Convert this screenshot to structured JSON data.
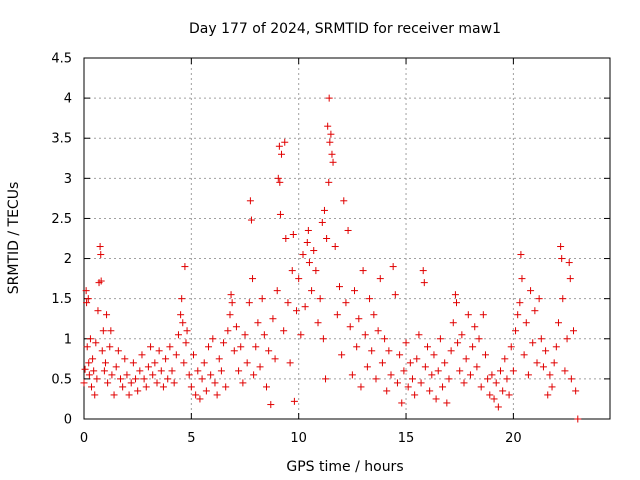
{
  "chart_data": {
    "type": "scatter",
    "title": "Day 177 of 2024, SRMTID for receiver maw1",
    "xlabel": "GPS time / hours",
    "ylabel": "SRMTID / TECUs",
    "xlim": [
      0,
      24.5
    ],
    "ylim": [
      0,
      4.5
    ],
    "xticks": [
      0,
      5,
      10,
      15,
      20
    ],
    "xtick_labels": [
      "0",
      "5",
      "10",
      "15",
      "20"
    ],
    "yticks": [
      0,
      0.5,
      1,
      1.5,
      2,
      2.5,
      3,
      3.5,
      4,
      4.5
    ],
    "ytick_labels": [
      "0",
      "0.5",
      "1",
      "1.5",
      "2",
      "2.5",
      "3",
      "3.5",
      "4",
      "4.5"
    ],
    "grid": true,
    "marker": "+",
    "color": "#e00000",
    "series": [
      {
        "name": "SRMTID",
        "points": [
          [
            0.0,
            0.45
          ],
          [
            0.05,
            0.62
          ],
          [
            0.1,
            1.6
          ],
          [
            0.12,
            1.45
          ],
          [
            0.15,
            0.9
          ],
          [
            0.2,
            1.5
          ],
          [
            0.22,
            0.7
          ],
          [
            0.25,
            0.55
          ],
          [
            0.3,
            1.0
          ],
          [
            0.35,
            0.4
          ],
          [
            0.4,
            0.75
          ],
          [
            0.45,
            0.6
          ],
          [
            0.5,
            0.3
          ],
          [
            0.55,
            0.95
          ],
          [
            0.6,
            0.5
          ],
          [
            0.65,
            1.35
          ],
          [
            0.7,
            1.7
          ],
          [
            0.75,
            2.15
          ],
          [
            0.78,
            2.05
          ],
          [
            0.8,
            1.72
          ],
          [
            0.85,
            0.85
          ],
          [
            0.9,
            1.1
          ],
          [
            0.95,
            0.6
          ],
          [
            1.0,
            0.7
          ],
          [
            1.05,
            1.3
          ],
          [
            1.1,
            0.45
          ],
          [
            1.2,
            0.9
          ],
          [
            1.25,
            1.1
          ],
          [
            1.3,
            0.55
          ],
          [
            1.4,
            0.3
          ],
          [
            1.5,
            0.65
          ],
          [
            1.6,
            0.85
          ],
          [
            1.7,
            0.5
          ],
          [
            1.8,
            0.4
          ],
          [
            1.9,
            0.75
          ],
          [
            2.0,
            0.55
          ],
          [
            2.1,
            0.3
          ],
          [
            2.2,
            0.45
          ],
          [
            2.3,
            0.7
          ],
          [
            2.4,
            0.5
          ],
          [
            2.5,
            0.35
          ],
          [
            2.6,
            0.6
          ],
          [
            2.7,
            0.8
          ],
          [
            2.8,
            0.5
          ],
          [
            2.9,
            0.4
          ],
          [
            3.0,
            0.65
          ],
          [
            3.1,
            0.9
          ],
          [
            3.2,
            0.55
          ],
          [
            3.3,
            0.7
          ],
          [
            3.4,
            0.45
          ],
          [
            3.5,
            0.85
          ],
          [
            3.6,
            0.6
          ],
          [
            3.7,
            0.4
          ],
          [
            3.8,
            0.75
          ],
          [
            3.9,
            0.5
          ],
          [
            4.0,
            0.9
          ],
          [
            4.1,
            0.6
          ],
          [
            4.2,
            0.45
          ],
          [
            4.3,
            0.8
          ],
          [
            4.4,
            1.05
          ],
          [
            4.5,
            1.3
          ],
          [
            4.55,
            1.5
          ],
          [
            4.6,
            1.2
          ],
          [
            4.65,
            0.7
          ],
          [
            4.7,
            1.9
          ],
          [
            4.75,
            0.95
          ],
          [
            4.8,
            1.1
          ],
          [
            4.9,
            0.55
          ],
          [
            5.0,
            0.4
          ],
          [
            5.1,
            0.8
          ],
          [
            5.2,
            0.3
          ],
          [
            5.3,
            0.6
          ],
          [
            5.4,
            0.25
          ],
          [
            5.5,
            0.5
          ],
          [
            5.6,
            0.7
          ],
          [
            5.7,
            0.35
          ],
          [
            5.8,
            0.9
          ],
          [
            5.9,
            0.55
          ],
          [
            6.0,
            1.0
          ],
          [
            6.1,
            0.45
          ],
          [
            6.2,
            0.3
          ],
          [
            6.3,
            0.75
          ],
          [
            6.4,
            0.6
          ],
          [
            6.5,
            0.95
          ],
          [
            6.6,
            0.4
          ],
          [
            6.7,
            1.1
          ],
          [
            6.8,
            1.3
          ],
          [
            6.85,
            1.55
          ],
          [
            6.9,
            1.45
          ],
          [
            7.0,
            0.85
          ],
          [
            7.1,
            1.15
          ],
          [
            7.2,
            0.6
          ],
          [
            7.3,
            0.9
          ],
          [
            7.4,
            0.45
          ],
          [
            7.5,
            1.05
          ],
          [
            7.6,
            0.7
          ],
          [
            7.7,
            1.45
          ],
          [
            7.75,
            2.72
          ],
          [
            7.8,
            2.48
          ],
          [
            7.85,
            1.75
          ],
          [
            7.9,
            0.55
          ],
          [
            8.0,
            0.9
          ],
          [
            8.1,
            1.2
          ],
          [
            8.2,
            0.65
          ],
          [
            8.3,
            1.5
          ],
          [
            8.4,
            1.05
          ],
          [
            8.5,
            0.4
          ],
          [
            8.6,
            0.85
          ],
          [
            8.7,
            0.18
          ],
          [
            8.8,
            1.25
          ],
          [
            8.9,
            0.75
          ],
          [
            9.0,
            1.6
          ],
          [
            9.05,
            3.0
          ],
          [
            9.1,
            3.4
          ],
          [
            9.12,
            2.95
          ],
          [
            9.15,
            2.55
          ],
          [
            9.2,
            3.3
          ],
          [
            9.3,
            1.1
          ],
          [
            9.35,
            3.45
          ],
          [
            9.4,
            2.25
          ],
          [
            9.5,
            1.45
          ],
          [
            9.6,
            0.7
          ],
          [
            9.7,
            1.85
          ],
          [
            9.75,
            2.3
          ],
          [
            9.8,
            0.22
          ],
          [
            9.9,
            1.35
          ],
          [
            10.0,
            1.75
          ],
          [
            10.1,
            1.05
          ],
          [
            10.2,
            2.05
          ],
          [
            10.3,
            1.4
          ],
          [
            10.4,
            2.2
          ],
          [
            10.45,
            2.35
          ],
          [
            10.5,
            1.95
          ],
          [
            10.6,
            1.6
          ],
          [
            10.7,
            2.1
          ],
          [
            10.8,
            1.85
          ],
          [
            10.9,
            1.2
          ],
          [
            11.0,
            1.5
          ],
          [
            11.1,
            2.45
          ],
          [
            11.15,
            1.0
          ],
          [
            11.2,
            2.6
          ],
          [
            11.25,
            0.5
          ],
          [
            11.3,
            2.25
          ],
          [
            11.35,
            3.65
          ],
          [
            11.4,
            2.95
          ],
          [
            11.42,
            4.0
          ],
          [
            11.45,
            3.45
          ],
          [
            11.5,
            3.55
          ],
          [
            11.55,
            3.3
          ],
          [
            11.6,
            3.2
          ],
          [
            11.7,
            2.15
          ],
          [
            11.8,
            1.3
          ],
          [
            11.9,
            1.65
          ],
          [
            12.0,
            0.8
          ],
          [
            12.1,
            2.72
          ],
          [
            12.2,
            1.45
          ],
          [
            12.3,
            2.35
          ],
          [
            12.4,
            1.15
          ],
          [
            12.5,
            0.55
          ],
          [
            12.6,
            1.6
          ],
          [
            12.7,
            0.9
          ],
          [
            12.8,
            1.25
          ],
          [
            12.9,
            0.4
          ],
          [
            13.0,
            1.85
          ],
          [
            13.1,
            1.05
          ],
          [
            13.2,
            0.65
          ],
          [
            13.3,
            1.5
          ],
          [
            13.4,
            0.85
          ],
          [
            13.5,
            1.3
          ],
          [
            13.6,
            0.5
          ],
          [
            13.7,
            1.1
          ],
          [
            13.8,
            1.75
          ],
          [
            13.9,
            0.7
          ],
          [
            14.0,
            1.0
          ],
          [
            14.1,
            0.35
          ],
          [
            14.2,
            0.85
          ],
          [
            14.3,
            0.55
          ],
          [
            14.4,
            1.9
          ],
          [
            14.5,
            1.55
          ],
          [
            14.6,
            0.45
          ],
          [
            14.7,
            0.8
          ],
          [
            14.8,
            0.2
          ],
          [
            14.9,
            0.6
          ],
          [
            15.0,
            0.95
          ],
          [
            15.1,
            0.4
          ],
          [
            15.2,
            0.7
          ],
          [
            15.3,
            0.5
          ],
          [
            15.4,
            0.3
          ],
          [
            15.5,
            0.75
          ],
          [
            15.6,
            1.05
          ],
          [
            15.7,
            0.45
          ],
          [
            15.8,
            1.85
          ],
          [
            15.85,
            1.7
          ],
          [
            15.9,
            0.65
          ],
          [
            16.0,
            0.9
          ],
          [
            16.1,
            0.35
          ],
          [
            16.2,
            0.55
          ],
          [
            16.3,
            0.8
          ],
          [
            16.4,
            0.25
          ],
          [
            16.5,
            0.6
          ],
          [
            16.6,
            1.0
          ],
          [
            16.7,
            0.4
          ],
          [
            16.8,
            0.7
          ],
          [
            16.9,
            0.2
          ],
          [
            17.0,
            0.5
          ],
          [
            17.1,
            0.85
          ],
          [
            17.2,
            1.2
          ],
          [
            17.3,
            1.55
          ],
          [
            17.35,
            1.45
          ],
          [
            17.4,
            0.95
          ],
          [
            17.5,
            0.6
          ],
          [
            17.6,
            1.05
          ],
          [
            17.7,
            0.45
          ],
          [
            17.8,
            0.75
          ],
          [
            17.9,
            1.3
          ],
          [
            18.0,
            0.55
          ],
          [
            18.1,
            0.9
          ],
          [
            18.2,
            1.15
          ],
          [
            18.3,
            0.65
          ],
          [
            18.4,
            1.0
          ],
          [
            18.5,
            0.4
          ],
          [
            18.6,
            1.3
          ],
          [
            18.7,
            0.8
          ],
          [
            18.8,
            0.5
          ],
          [
            18.9,
            0.3
          ],
          [
            19.0,
            0.55
          ],
          [
            19.1,
            0.25
          ],
          [
            19.2,
            0.45
          ],
          [
            19.3,
            0.15
          ],
          [
            19.4,
            0.6
          ],
          [
            19.5,
            0.35
          ],
          [
            19.6,
            0.75
          ],
          [
            19.7,
            0.5
          ],
          [
            19.8,
            0.3
          ],
          [
            19.9,
            0.9
          ],
          [
            20.0,
            0.6
          ],
          [
            20.1,
            1.1
          ],
          [
            20.2,
            1.3
          ],
          [
            20.3,
            1.45
          ],
          [
            20.35,
            2.05
          ],
          [
            20.4,
            1.75
          ],
          [
            20.5,
            0.8
          ],
          [
            20.6,
            1.2
          ],
          [
            20.7,
            0.55
          ],
          [
            20.8,
            1.6
          ],
          [
            20.9,
            0.95
          ],
          [
            21.0,
            1.35
          ],
          [
            21.1,
            0.7
          ],
          [
            21.2,
            1.5
          ],
          [
            21.3,
            1.0
          ],
          [
            21.4,
            0.65
          ],
          [
            21.5,
            0.85
          ],
          [
            21.6,
            0.3
          ],
          [
            21.7,
            0.55
          ],
          [
            21.8,
            0.4
          ],
          [
            21.9,
            0.7
          ],
          [
            22.0,
            0.9
          ],
          [
            22.1,
            1.2
          ],
          [
            22.2,
            2.15
          ],
          [
            22.25,
            2.0
          ],
          [
            22.3,
            1.5
          ],
          [
            22.4,
            0.6
          ],
          [
            22.5,
            1.0
          ],
          [
            22.6,
            1.95
          ],
          [
            22.65,
            1.75
          ],
          [
            22.7,
            0.5
          ],
          [
            22.8,
            1.1
          ],
          [
            22.9,
            0.35
          ],
          [
            23.0,
            0.0
          ]
        ]
      }
    ]
  }
}
